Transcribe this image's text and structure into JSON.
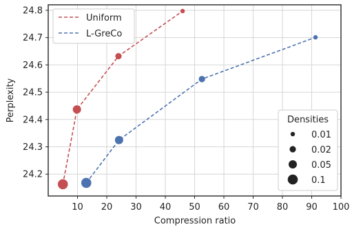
{
  "chart_data": {
    "type": "scatter",
    "xlabel": "Compression ratio",
    "ylabel": "Perplexity",
    "xlim": [
      0,
      100
    ],
    "ylim": [
      24.12,
      24.82
    ],
    "xticks": [
      10,
      20,
      30,
      40,
      50,
      60,
      70,
      80,
      90,
      100
    ],
    "yticks": [
      24.2,
      24.3,
      24.4,
      24.5,
      24.6,
      24.7,
      24.8
    ],
    "grid": true,
    "legend_position": "top-left",
    "series": [
      {
        "name": "Uniform",
        "color": "#c44e52",
        "line_style": "dashed",
        "points": [
          {
            "x": 5.0,
            "y": 24.163,
            "density": 0.1
          },
          {
            "x": 9.8,
            "y": 24.437,
            "density": 0.05
          },
          {
            "x": 24.0,
            "y": 24.632,
            "density": 0.02
          },
          {
            "x": 45.9,
            "y": 24.797,
            "density": 0.01
          }
        ]
      },
      {
        "name": "L-GreCo",
        "color": "#4c72b0",
        "line_style": "dashed",
        "points": [
          {
            "x": 13.0,
            "y": 24.168,
            "density": 0.1
          },
          {
            "x": 24.2,
            "y": 24.325,
            "density": 0.05
          },
          {
            "x": 52.5,
            "y": 24.548,
            "density": 0.02
          },
          {
            "x": 91.3,
            "y": 24.701,
            "density": 0.01
          }
        ]
      }
    ],
    "size_legend": {
      "title": "Densities",
      "position": "bottom-right",
      "entries": [
        {
          "label": "0.01",
          "density": 0.01
        },
        {
          "label": "0.02",
          "density": 0.02
        },
        {
          "label": "0.05",
          "density": 0.05
        },
        {
          "label": "0.1",
          "density": 0.1
        }
      ]
    }
  }
}
